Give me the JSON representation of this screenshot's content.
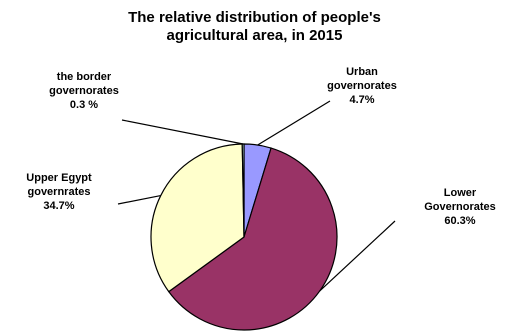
{
  "chart_data": {
    "type": "pie",
    "title_line1": "The relative distribution of people's",
    "title_line2": "agricultural area,  in 2015",
    "slices": [
      {
        "label_lines": [
          "Urban",
          "governorates",
          "4.7%"
        ],
        "value": 4.7,
        "color": "#9999ff"
      },
      {
        "label_lines": [
          "Lower",
          "Governorates",
          "60.3%"
        ],
        "value": 60.3,
        "color": "#993366"
      },
      {
        "label_lines": [
          "Upper Egypt",
          "governrates",
          "34.7%"
        ],
        "value": 34.7,
        "color": "#ffffcc"
      },
      {
        "label_lines": [
          "the border",
          "governorates",
          "0.3 %"
        ],
        "value": 0.3,
        "color": "#ccffff"
      }
    ]
  }
}
